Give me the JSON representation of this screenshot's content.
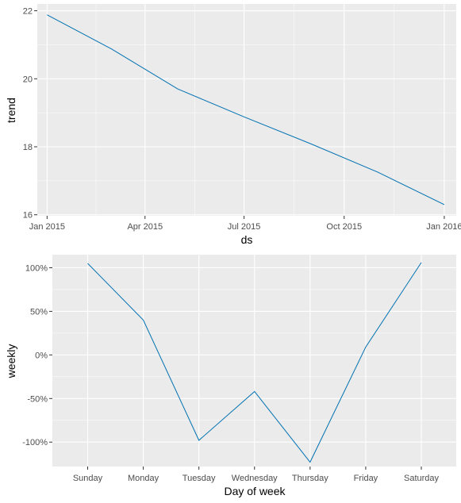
{
  "colors": {
    "line": "#0072B2",
    "panel": "#EBEBEB",
    "grid": "#FFFFFF"
  },
  "chart_data": [
    {
      "type": "line",
      "xlabel": "ds",
      "ylabel": "trend",
      "x_ticks": [
        "2015-01-01",
        "2015-04-01",
        "2015-07-01",
        "2015-10-01",
        "2016-01-01"
      ],
      "x_tick_labels": [
        "Jan 2015",
        "Apr 2015",
        "Jul 2015",
        "Oct 2015",
        "Jan 2016"
      ],
      "y_ticks": [
        16,
        18,
        20,
        22
      ],
      "y_tick_labels": [
        "16",
        "18",
        "20",
        "22"
      ],
      "xlim": [
        "2014-12-23",
        "2016-01-12"
      ],
      "ylim": [
        15.97,
        22.2
      ],
      "grid": true,
      "series": [
        {
          "x": [
            "2015-01-01",
            "2015-03-01",
            "2015-05-01",
            "2015-07-01",
            "2015-09-01",
            "2015-11-01",
            "2016-01-01"
          ],
          "y": [
            21.88,
            20.88,
            19.7,
            18.88,
            18.08,
            17.25,
            16.3
          ]
        }
      ]
    },
    {
      "type": "line",
      "xlabel": "Day of week",
      "ylabel": "weekly",
      "categories": [
        "Sunday",
        "Monday",
        "Tuesday",
        "Wednesday",
        "Thursday",
        "Friday",
        "Saturday"
      ],
      "y_ticks": [
        -100,
        -50,
        0,
        50,
        100
      ],
      "y_tick_labels": [
        "-100%",
        "-50%",
        "0%",
        "50%",
        "100%"
      ],
      "ylim": [
        -128,
        115
      ],
      "grid": true,
      "series": [
        {
          "values": [
            105,
            40,
            -98,
            -42,
            -123,
            9,
            106
          ]
        }
      ]
    }
  ]
}
